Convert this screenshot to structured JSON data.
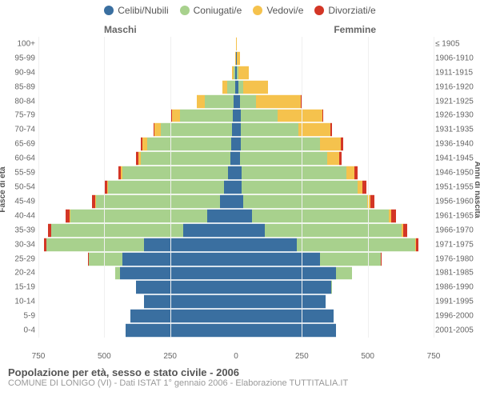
{
  "legend": {
    "items": [
      {
        "label": "Celibi/Nubili",
        "color": "#3a6fa0"
      },
      {
        "label": "Coniugati/e",
        "color": "#a8d18d"
      },
      {
        "label": "Vedovi/e",
        "color": "#f5c24d"
      },
      {
        "label": "Divorziati/e",
        "color": "#d33626"
      }
    ]
  },
  "chart": {
    "type": "population-pyramid",
    "max_value": 750,
    "male_label": "Maschi",
    "female_label": "Femmine",
    "y_left_title": "Fasce di età",
    "y_right_title": "Anni di nascita",
    "x_ticks": [
      750,
      500,
      250,
      0,
      250,
      500,
      750
    ],
    "colors": {
      "single": "#3a6fa0",
      "married": "#a8d18d",
      "widowed": "#f5c24d",
      "divorced": "#d33626",
      "grid": "#f0f0f0",
      "axis": "#bbbbbb",
      "background": "#ffffff"
    },
    "age_groups": [
      {
        "age": "100+",
        "birth": "≤ 1905",
        "m": {
          "s": 0,
          "c": 0,
          "v": 0,
          "d": 0
        },
        "f": {
          "s": 0,
          "c": 0,
          "v": 2,
          "d": 0
        }
      },
      {
        "age": "95-99",
        "birth": "1906-1910",
        "m": {
          "s": 0,
          "c": 0,
          "v": 3,
          "d": 0
        },
        "f": {
          "s": 2,
          "c": 0,
          "v": 12,
          "d": 0
        }
      },
      {
        "age": "90-94",
        "birth": "1911-1915",
        "m": {
          "s": 2,
          "c": 6,
          "v": 8,
          "d": 0
        },
        "f": {
          "s": 4,
          "c": 4,
          "v": 40,
          "d": 0
        }
      },
      {
        "age": "85-89",
        "birth": "1916-1920",
        "m": {
          "s": 4,
          "c": 30,
          "v": 18,
          "d": 0
        },
        "f": {
          "s": 10,
          "c": 18,
          "v": 95,
          "d": 0
        }
      },
      {
        "age": "80-84",
        "birth": "1921-1925",
        "m": {
          "s": 8,
          "c": 110,
          "v": 30,
          "d": 0
        },
        "f": {
          "s": 16,
          "c": 60,
          "v": 170,
          "d": 2
        }
      },
      {
        "age": "75-79",
        "birth": "1926-1930",
        "m": {
          "s": 12,
          "c": 200,
          "v": 32,
          "d": 2
        },
        "f": {
          "s": 18,
          "c": 140,
          "v": 170,
          "d": 4
        }
      },
      {
        "age": "70-74",
        "birth": "1931-1935",
        "m": {
          "s": 14,
          "c": 270,
          "v": 26,
          "d": 4
        },
        "f": {
          "s": 18,
          "c": 220,
          "v": 120,
          "d": 6
        }
      },
      {
        "age": "65-69",
        "birth": "1936-1940",
        "m": {
          "s": 18,
          "c": 320,
          "v": 18,
          "d": 6
        },
        "f": {
          "s": 18,
          "c": 300,
          "v": 80,
          "d": 8
        }
      },
      {
        "age": "60-64",
        "birth": "1941-1945",
        "m": {
          "s": 22,
          "c": 340,
          "v": 10,
          "d": 8
        },
        "f": {
          "s": 16,
          "c": 330,
          "v": 45,
          "d": 10
        }
      },
      {
        "age": "55-59",
        "birth": "1946-1950",
        "m": {
          "s": 30,
          "c": 400,
          "v": 8,
          "d": 10
        },
        "f": {
          "s": 20,
          "c": 400,
          "v": 30,
          "d": 12
        }
      },
      {
        "age": "50-54",
        "birth": "1951-1955",
        "m": {
          "s": 45,
          "c": 440,
          "v": 5,
          "d": 12
        },
        "f": {
          "s": 22,
          "c": 440,
          "v": 18,
          "d": 14
        }
      },
      {
        "age": "45-49",
        "birth": "1956-1960",
        "m": {
          "s": 60,
          "c": 470,
          "v": 3,
          "d": 14
        },
        "f": {
          "s": 28,
          "c": 470,
          "v": 12,
          "d": 16
        }
      },
      {
        "age": "40-44",
        "birth": "1961-1965",
        "m": {
          "s": 110,
          "c": 520,
          "v": 2,
          "d": 16
        },
        "f": {
          "s": 60,
          "c": 520,
          "v": 8,
          "d": 18
        }
      },
      {
        "age": "35-39",
        "birth": "1966-1970",
        "m": {
          "s": 200,
          "c": 500,
          "v": 1,
          "d": 14
        },
        "f": {
          "s": 110,
          "c": 520,
          "v": 5,
          "d": 16
        }
      },
      {
        "age": "30-34",
        "birth": "1971-1975",
        "m": {
          "s": 350,
          "c": 370,
          "v": 0,
          "d": 8
        },
        "f": {
          "s": 230,
          "c": 450,
          "v": 2,
          "d": 10
        }
      },
      {
        "age": "25-29",
        "birth": "1976-1980",
        "m": {
          "s": 430,
          "c": 130,
          "v": 0,
          "d": 2
        },
        "f": {
          "s": 320,
          "c": 230,
          "v": 0,
          "d": 4
        }
      },
      {
        "age": "20-24",
        "birth": "1981-1985",
        "m": {
          "s": 440,
          "c": 20,
          "v": 0,
          "d": 0
        },
        "f": {
          "s": 380,
          "c": 60,
          "v": 0,
          "d": 0
        }
      },
      {
        "age": "15-19",
        "birth": "1986-1990",
        "m": {
          "s": 380,
          "c": 0,
          "v": 0,
          "d": 0
        },
        "f": {
          "s": 360,
          "c": 2,
          "v": 0,
          "d": 0
        }
      },
      {
        "age": "10-14",
        "birth": "1991-1995",
        "m": {
          "s": 350,
          "c": 0,
          "v": 0,
          "d": 0
        },
        "f": {
          "s": 340,
          "c": 0,
          "v": 0,
          "d": 0
        }
      },
      {
        "age": "5-9",
        "birth": "1996-2000",
        "m": {
          "s": 400,
          "c": 0,
          "v": 0,
          "d": 0
        },
        "f": {
          "s": 370,
          "c": 0,
          "v": 0,
          "d": 0
        }
      },
      {
        "age": "0-4",
        "birth": "2001-2005",
        "m": {
          "s": 420,
          "c": 0,
          "v": 0,
          "d": 0
        },
        "f": {
          "s": 380,
          "c": 0,
          "v": 0,
          "d": 0
        }
      }
    ]
  },
  "footer": {
    "title": "Popolazione per età, sesso e stato civile - 2006",
    "subtitle": "COMUNE DI LONIGO (VI) - Dati ISTAT 1° gennaio 2006 - Elaborazione TUTTITALIA.IT"
  }
}
